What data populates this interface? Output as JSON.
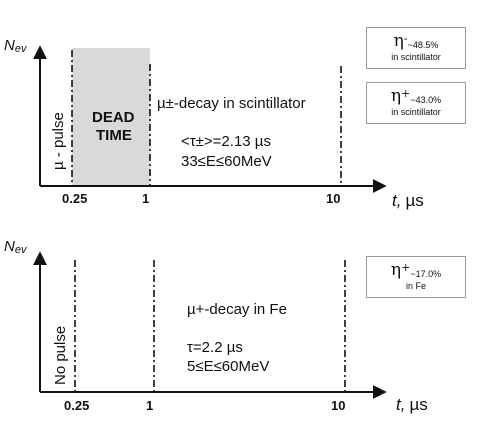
{
  "top_panel": {
    "y_axis_label_main": "N",
    "y_axis_label_sub": "ev",
    "x_axis_label_main": "t,",
    "x_axis_label_unit": "µs",
    "ticks": [
      "0.25",
      "1",
      "10"
    ],
    "pulse_label": "µ - pulse",
    "dead_time_line1": "DEAD",
    "dead_time_line2": "TIME",
    "decay_text": "µ±-decay in scintillator",
    "tau_text": "<τ±>=2.13 µs",
    "energy_text": "33≤E≤60MeV"
  },
  "bottom_panel": {
    "y_axis_label_main": "N",
    "y_axis_label_sub": "ev",
    "x_axis_label_main": "t,",
    "x_axis_label_unit": "µs",
    "ticks": [
      "0.25",
      "1",
      "10"
    ],
    "pulse_label": "No pulse",
    "decay_text": "µ+-decay in Fe",
    "tau_text": "τ=2.2 µs",
    "energy_text": "5≤E≤60MeV"
  },
  "boxes": [
    {
      "symbol": "η",
      "sign": "-",
      "value": "~48.5%",
      "note": "in scintillator"
    },
    {
      "symbol": "η",
      "sign": "+",
      "value": "~43.0%",
      "note": "in scintillator"
    },
    {
      "symbol": "η",
      "sign": "+",
      "value": "~17.0%",
      "note": "in Fe"
    }
  ]
}
